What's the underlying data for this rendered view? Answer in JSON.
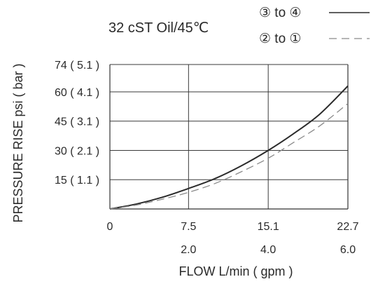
{
  "chart_data": {
    "type": "line",
    "title": "32 cST Oil/45℃",
    "xlabel": "FLOW L/min ( gpm )",
    "ylabel": "PRESSURE RISE psi ( bar )",
    "xlim": [
      0,
      22.7
    ],
    "ylim": [
      0,
      74
    ],
    "x_ticks": [
      {
        "value": 0,
        "label": "0",
        "sublabel": ""
      },
      {
        "value": 7.5,
        "label": "7.5",
        "sublabel": "2.0"
      },
      {
        "value": 15.1,
        "label": "15.1",
        "sublabel": "4.0"
      },
      {
        "value": 22.7,
        "label": "22.7",
        "sublabel": "6.0"
      }
    ],
    "y_ticks": [
      {
        "value": 15,
        "label": "15 ( 1.1 )"
      },
      {
        "value": 30,
        "label": "30 ( 2.1 )"
      },
      {
        "value": 45,
        "label": "45 ( 3.1 )"
      },
      {
        "value": 60,
        "label": "60 ( 4.1 )"
      },
      {
        "value": 74,
        "label": "74 ( 5.1 )"
      }
    ],
    "grid": true,
    "legend_position": "top-right",
    "series": [
      {
        "name": "③ to ④",
        "style": "solid",
        "color": "#2b2b2b",
        "x": [
          0,
          2.5,
          5,
          7.5,
          10,
          12.5,
          15.1,
          17.5,
          20,
          22.7
        ],
        "y": [
          0,
          2.5,
          6,
          10.5,
          15.5,
          22,
          30,
          38.5,
          48.5,
          63
        ]
      },
      {
        "name": "② to ①",
        "style": "dashed",
        "color": "#8a8a8a",
        "x": [
          0,
          2.5,
          5,
          7.5,
          10,
          12.5,
          15.1,
          17.5,
          20,
          22.7
        ],
        "y": [
          0,
          2,
          5,
          8.5,
          13,
          19,
          26,
          34,
          42.5,
          54
        ]
      }
    ]
  }
}
